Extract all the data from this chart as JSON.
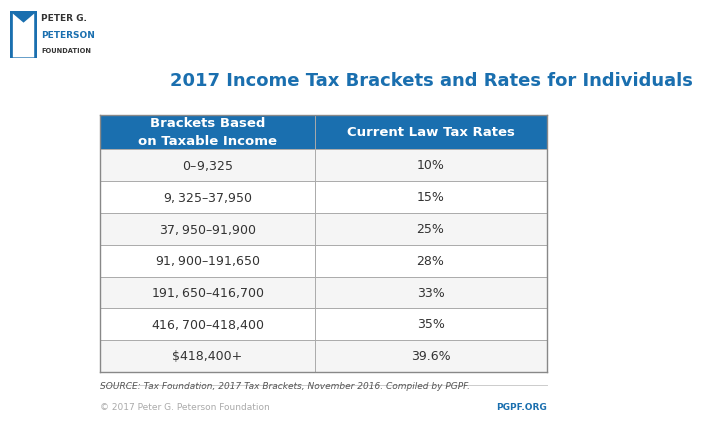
{
  "title": "2017 Income Tax Brackets and Rates for Individuals",
  "col1_header": "Brackets Based\non Taxable Income",
  "col2_header": "Current Law Tax Rates",
  "rows": [
    [
      "$0 – $9,325",
      "10%"
    ],
    [
      "$9,325 – $37,950",
      "15%"
    ],
    [
      "$37,950 – $91,900",
      "25%"
    ],
    [
      "$91,900 – $191,650",
      "28%"
    ],
    [
      "$191,650 – $416,700",
      "33%"
    ],
    [
      "$416,700 – $418,400",
      "35%"
    ],
    [
      "$418,400+",
      "39.6%"
    ]
  ],
  "header_bg": "#1a6faf",
  "header_fg": "#ffffff",
  "row_bg_even": "#f5f5f5",
  "row_bg_odd": "#ffffff",
  "border_color": "#aaaaaa",
  "title_color": "#1a6faf",
  "bg_color": "#ffffff",
  "source_text": "SOURCE: Tax Foundation, 2017 Tax Brackets, November 2016. Compiled by PGPF.",
  "footer_left": "© 2017 Peter G. Peterson Foundation",
  "footer_right": "PGPF.ORG",
  "footer_color": "#aaaaaa",
  "footer_right_color": "#1a6faf",
  "org_name_line1": "PETER G.",
  "org_name_line2": "PETERSON",
  "org_name_line3": "FOUNDATION",
  "table_outer_border": "#888888",
  "col_split": 0.48
}
